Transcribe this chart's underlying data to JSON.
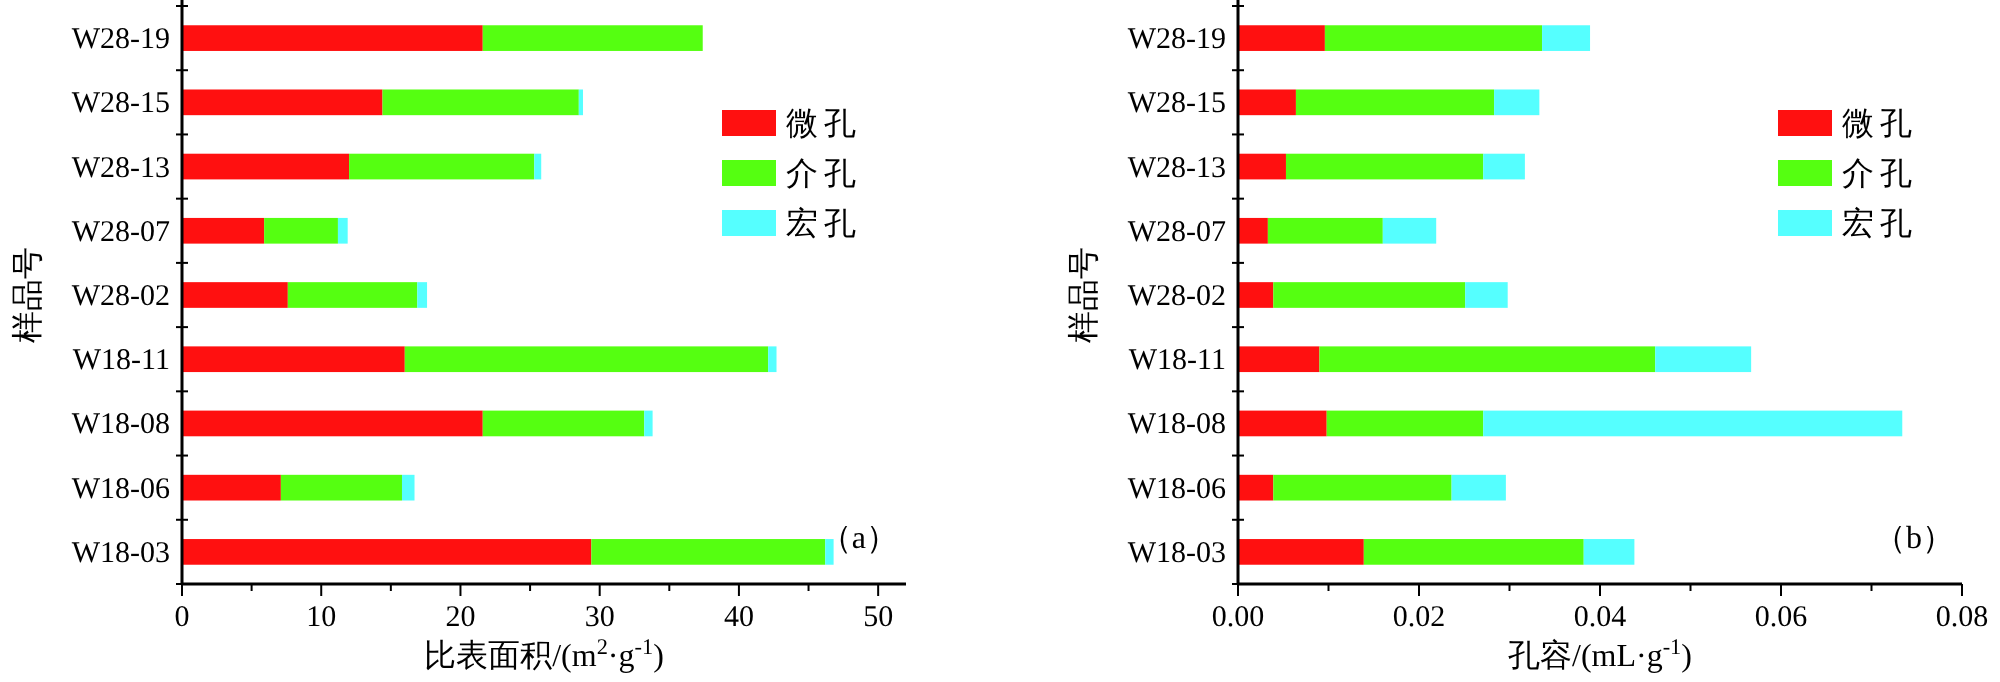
{
  "chart_data": [
    {
      "type": "bar",
      "orientation": "horizontal",
      "stacked": true,
      "legend": "top right",
      "categories": [
        "W28-19",
        "W28-15",
        "W28-13",
        "W28-07",
        "W28-02",
        "W18-11",
        "W18-08",
        "W18-06",
        "W18-03"
      ],
      "series": [
        {
          "name": "微孔",
          "color": "#ff1010",
          "values": [
            21.6,
            14.4,
            12.0,
            5.9,
            7.6,
            16.0,
            21.6,
            7.1,
            29.4
          ]
        },
        {
          "name": "介孔",
          "color": "#55ff11",
          "values": [
            15.8,
            14.1,
            13.3,
            5.3,
            9.3,
            26.1,
            11.6,
            8.7,
            16.8
          ]
        },
        {
          "name": "宏孔",
          "color": "#55ffff",
          "values": [
            0,
            0.3,
            0.5,
            0.7,
            0.7,
            0.6,
            0.6,
            0.9,
            0.6
          ]
        }
      ],
      "xlabel": "比表面积/(m$^{2}$·g$^{-1}$)",
      "ylabel": "样品号",
      "xlim": [
        0,
        52
      ],
      "xticks": [
        0,
        {
          "value": 5,
          "label": null
        },
        10,
        {
          "value": 15,
          "label": null
        },
        20,
        {
          "value": 25,
          "label": null
        },
        30,
        {
          "value": 35,
          "label": null
        },
        40,
        {
          "value": 45,
          "label": null
        },
        50
      ],
      "annotations": [
        "（a）"
      ]
    },
    {
      "type": "bar",
      "orientation": "horizontal",
      "stacked": true,
      "legend": "top right",
      "categories": [
        "W28-19",
        "W28-15",
        "W28-13",
        "W28-07",
        "W28-02",
        "W18-11",
        "W18-08",
        "W18-06",
        "W18-03"
      ],
      "series": [
        {
          "name": "微孔",
          "color": "#ff1010",
          "values": [
            0.0096,
            0.0064,
            0.0053,
            0.0033,
            0.0039,
            0.009,
            0.0098,
            0.0039,
            0.0139
          ]
        },
        {
          "name": "介孔",
          "color": "#55ff11",
          "values": [
            0.024,
            0.0219,
            0.0218,
            0.0127,
            0.0212,
            0.0371,
            0.0173,
            0.0197,
            0.0243
          ]
        },
        {
          "name": "宏孔",
          "color": "#55ffff",
          "values": [
            0.0053,
            0.005,
            0.0046,
            0.0059,
            0.0047,
            0.0106,
            0.0463,
            0.006,
            0.0056
          ]
        }
      ],
      "xlabel": "孔容/(mL·g$^{-1}$)",
      "ylabel": "样品号",
      "xlim": [
        0,
        0.08
      ],
      "xticks": [
        {
          "value": 0,
          "label": "0.00"
        },
        {
          "value": 0.01,
          "label": null
        },
        {
          "value": 0.02,
          "label": "0.02"
        },
        {
          "value": 0.03,
          "label": null
        },
        {
          "value": 0.04,
          "label": "0.04"
        },
        {
          "value": 0.05,
          "label": null
        },
        {
          "value": 0.06,
          "label": "0.06"
        },
        {
          "value": 0.07,
          "label": null
        },
        {
          "value": 0.08,
          "label": "0.08"
        }
      ],
      "annotations": [
        "（b）"
      ]
    }
  ]
}
